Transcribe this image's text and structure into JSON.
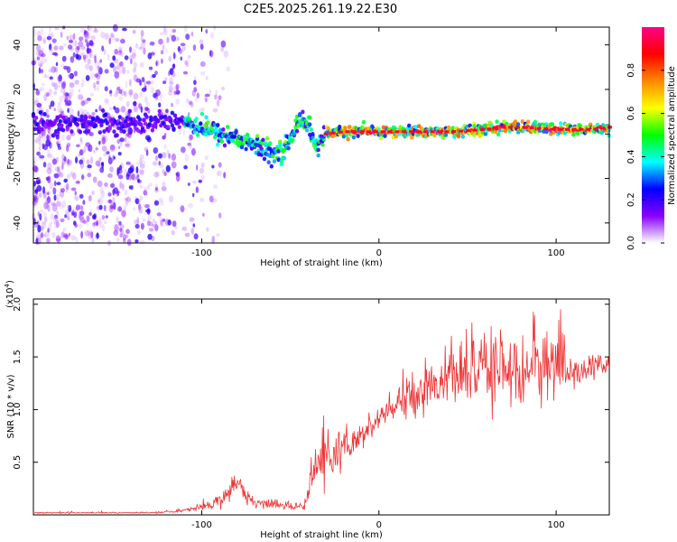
{
  "figure_title": "C2E5.2025.261.19.22.E30",
  "chart_data": [
    {
      "type": "heatmap",
      "xlabel": "Height of straight line (km)",
      "ylabel": "Frequency (Hz)",
      "xlim": [
        -195,
        130
      ],
      "ylim": [
        -49,
        48
      ],
      "xticks": [
        -100,
        0,
        100
      ],
      "yticks": [
        -40,
        -20,
        0,
        20,
        40
      ],
      "grid": false,
      "colorbar": {
        "label": "Normalized spectral amplitude",
        "range": [
          0.0,
          1.0
        ],
        "ticks": [
          "0.0",
          "0.2",
          "0.4",
          "0.6",
          "0.8"
        ],
        "tick_values": [
          0.0,
          0.2,
          0.4,
          0.6,
          0.8
        ],
        "colormap": [
          "#ffffff",
          "#8800ff",
          "#0000ff",
          "#00ffff",
          "#00ff00",
          "#ffff00",
          "#ff8800",
          "#ff0000",
          "#ff0088"
        ]
      },
      "ridge": {
        "description_values_hz_vs_km": [
          [
            -195,
            5
          ],
          [
            -170,
            5
          ],
          [
            -150,
            5
          ],
          [
            -130,
            5
          ],
          [
            -120,
            6
          ],
          [
            -110,
            6
          ],
          [
            -100,
            3
          ],
          [
            -90,
            0
          ],
          [
            -80,
            -2
          ],
          [
            -70,
            -5
          ],
          [
            -60,
            -9
          ],
          [
            -55,
            -7
          ],
          [
            -50,
            -4
          ],
          [
            -45,
            8
          ],
          [
            -40,
            4
          ],
          [
            -35,
            -6
          ],
          [
            -30,
            0
          ],
          [
            -20,
            1
          ],
          [
            0,
            1
          ],
          [
            20,
            1
          ],
          [
            40,
            1
          ],
          [
            60,
            2
          ],
          [
            70,
            3
          ],
          [
            80,
            3
          ],
          [
            100,
            2
          ],
          [
            120,
            2
          ],
          [
            130,
            3
          ]
        ]
      }
    },
    {
      "type": "line",
      "xlabel": "Height of straight line (km)",
      "ylabel": "SNR (10 * v/v)",
      "multiplier_label": "(x10",
      "multiplier_exp": "4",
      "xlim": [
        -195,
        130
      ],
      "ylim": [
        0,
        2.05
      ],
      "xticks": [
        -100,
        0,
        100
      ],
      "yticks": [
        0.5,
        1.0,
        1.5,
        2.0
      ],
      "ytick_labels": [
        "0.5",
        "1.0",
        "1.5",
        "2.0"
      ],
      "color": "#ee3333",
      "series": [
        {
          "x": [
            -195,
            -170,
            -150,
            -130,
            -115,
            -105,
            -95,
            -85,
            -80,
            -75,
            -70,
            -60,
            -50,
            -42,
            -38,
            -34,
            -30,
            -25,
            -20,
            -15,
            -10,
            -5,
            0,
            10,
            20,
            30,
            40,
            50,
            60,
            70,
            80,
            90,
            100,
            110,
            120,
            130
          ],
          "y": [
            0.02,
            0.02,
            0.02,
            0.02,
            0.03,
            0.06,
            0.1,
            0.2,
            0.3,
            0.18,
            0.12,
            0.1,
            0.08,
            0.08,
            0.35,
            0.5,
            0.55,
            0.55,
            0.6,
            0.65,
            0.75,
            0.82,
            0.9,
            1.05,
            1.15,
            1.25,
            1.3,
            1.32,
            1.38,
            1.4,
            1.4,
            1.42,
            1.38,
            1.35,
            1.4,
            1.42
          ],
          "noise": [
            0.005,
            0.005,
            0.005,
            0.005,
            0.01,
            0.02,
            0.04,
            0.08,
            0.1,
            0.06,
            0.04,
            0.03,
            0.03,
            0.03,
            0.2,
            0.22,
            0.2,
            0.18,
            0.15,
            0.14,
            0.12,
            0.12,
            0.12,
            0.14,
            0.16,
            0.18,
            0.22,
            0.25,
            0.28,
            0.3,
            0.3,
            0.28,
            0.25,
            0.15,
            0.1,
            0.08
          ]
        }
      ]
    }
  ]
}
